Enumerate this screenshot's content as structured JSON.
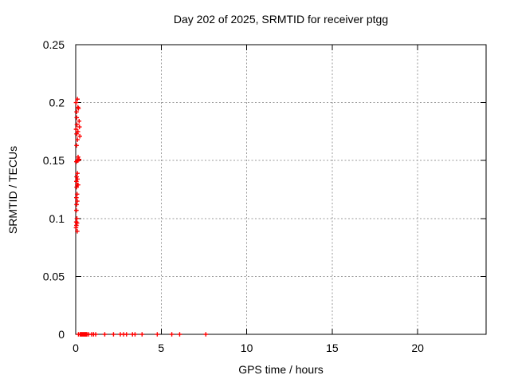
{
  "chart_data": {
    "type": "scatter",
    "title": "Day 202 of 2025, SRMTID for receiver ptgg",
    "xlabel": "GPS time / hours",
    "ylabel": "SRMTID / TECUs",
    "xlim": [
      0,
      24
    ],
    "ylim": [
      0,
      0.25
    ],
    "x_ticks": [
      0,
      5,
      10,
      15,
      20
    ],
    "x_tick_labels": [
      "0",
      "5",
      "10",
      "15",
      "20"
    ],
    "y_ticks": [
      0,
      0.05,
      0.1,
      0.15,
      0.2,
      0.25
    ],
    "y_tick_labels": [
      "0",
      "0.05",
      "0.1",
      "0.15",
      "0.2",
      "0.25"
    ],
    "grid": true,
    "legend": false,
    "marker": "plus",
    "marker_color": "#ff0000",
    "grid_color": "#9a9a9a",
    "axis_color": "#000000",
    "series": [
      {
        "name": "SRMTID",
        "points": [
          [
            0.1,
            0.203
          ],
          [
            0.02,
            0.2
          ],
          [
            0.13,
            0.196
          ],
          [
            0.16,
            0.195
          ],
          [
            0.05,
            0.192
          ],
          [
            0.06,
            0.187
          ],
          [
            0.2,
            0.184
          ],
          [
            0.07,
            0.181
          ],
          [
            0.22,
            0.179
          ],
          [
            0.02,
            0.177
          ],
          [
            0.13,
            0.175
          ],
          [
            0.05,
            0.173
          ],
          [
            0.24,
            0.171
          ],
          [
            0.1,
            0.168
          ],
          [
            0.05,
            0.163
          ],
          [
            0.14,
            0.153
          ],
          [
            0.2,
            0.151
          ],
          [
            0.08,
            0.15
          ],
          [
            0.13,
            0.15
          ],
          [
            0.04,
            0.149
          ],
          [
            0.1,
            0.139
          ],
          [
            0.05,
            0.136
          ],
          [
            0.1,
            0.134
          ],
          [
            0.04,
            0.132
          ],
          [
            0.09,
            0.129
          ],
          [
            0.14,
            0.129
          ],
          [
            0.05,
            0.127
          ],
          [
            0.08,
            0.121
          ],
          [
            0.04,
            0.118
          ],
          [
            0.09,
            0.115
          ],
          [
            0.05,
            0.112
          ],
          [
            0.04,
            0.107
          ],
          [
            0.07,
            0.1
          ],
          [
            0.03,
            0.097
          ],
          [
            0.08,
            0.096
          ],
          [
            0.04,
            0.094
          ],
          [
            0.02,
            0.092
          ],
          [
            0.09,
            0.089
          ],
          [
            0.16,
            0.0
          ],
          [
            0.26,
            0.0
          ],
          [
            0.3,
            0.0
          ],
          [
            0.34,
            0.0
          ],
          [
            0.38,
            0.0
          ],
          [
            0.42,
            0.0
          ],
          [
            0.46,
            0.0
          ],
          [
            0.5,
            0.0
          ],
          [
            0.54,
            0.0
          ],
          [
            0.58,
            0.0
          ],
          [
            0.62,
            0.0
          ],
          [
            0.66,
            0.0
          ],
          [
            0.76,
            0.0
          ],
          [
            0.93,
            0.0
          ],
          [
            1.04,
            0.0
          ],
          [
            1.17,
            0.0
          ],
          [
            1.7,
            0.0
          ],
          [
            2.21,
            0.0
          ],
          [
            2.61,
            0.0
          ],
          [
            2.8,
            0.0
          ],
          [
            2.97,
            0.0
          ],
          [
            3.32,
            0.0
          ],
          [
            3.47,
            0.0
          ],
          [
            3.88,
            0.0
          ],
          [
            4.77,
            0.0
          ],
          [
            5.62,
            0.0
          ],
          [
            6.08,
            0.0
          ],
          [
            7.61,
            0.0
          ]
        ]
      }
    ]
  }
}
